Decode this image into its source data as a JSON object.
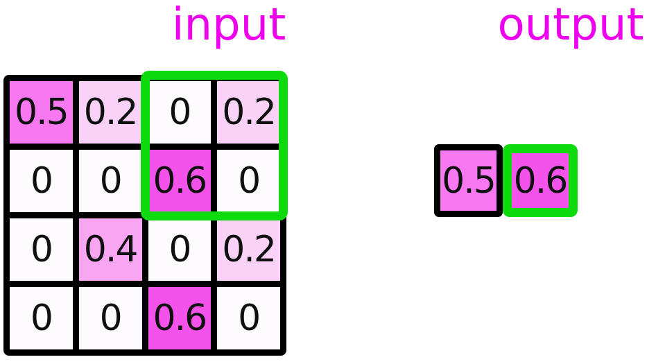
{
  "titles": {
    "input": "input",
    "output": "output"
  },
  "input_grid": {
    "rows": [
      [
        "0.5",
        "0.2",
        "0",
        "0.2"
      ],
      [
        "0",
        "0",
        "0.6",
        "0"
      ],
      [
        "0",
        "0.4",
        "0",
        "0.2"
      ],
      [
        "0",
        "0",
        "0.6",
        "0"
      ]
    ]
  },
  "pooling_window": {
    "row_start": 0,
    "row_end": 1,
    "col_start": 2,
    "col_end": 3
  },
  "output_grid": {
    "cells": [
      "0.5",
      "0.6"
    ],
    "highlighted_cell_index": 1
  },
  "colors": {
    "title_text": "#ee00ee",
    "highlight_green": "#0edb0e",
    "grid_line_black": "#000000",
    "number_text": "#101010",
    "value_fill": {
      "0": "#fefbfe",
      "0.2": "#fad2f8",
      "0.4": "#f8a5f2",
      "0.5": "#f778f0",
      "0.6": "#f353ea"
    }
  }
}
